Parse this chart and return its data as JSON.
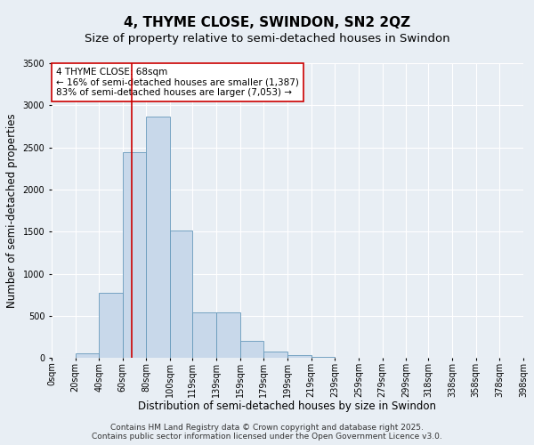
{
  "title": "4, THYME CLOSE, SWINDON, SN2 2QZ",
  "subtitle": "Size of property relative to semi-detached houses in Swindon",
  "xlabel": "Distribution of semi-detached houses by size in Swindon",
  "ylabel": "Number of semi-detached properties",
  "bar_labels": [
    "0sqm",
    "20sqm",
    "40sqm",
    "60sqm",
    "80sqm",
    "100sqm",
    "119sqm",
    "139sqm",
    "159sqm",
    "179sqm",
    "199sqm",
    "219sqm",
    "239sqm",
    "259sqm",
    "279sqm",
    "299sqm",
    "318sqm",
    "338sqm",
    "358sqm",
    "378sqm",
    "398sqm"
  ],
  "bar_values": [
    5,
    60,
    770,
    2440,
    2870,
    1510,
    540,
    540,
    205,
    80,
    40,
    15,
    5,
    5,
    2,
    2,
    0,
    0,
    0,
    0,
    0
  ],
  "bin_edges": [
    0,
    20,
    40,
    60,
    80,
    100,
    119,
    139,
    159,
    179,
    199,
    219,
    239,
    259,
    279,
    299,
    318,
    338,
    358,
    378,
    398
  ],
  "bar_color": "#c8d8ea",
  "bar_edge_color": "#6699bb",
  "property_line_x": 68,
  "property_line_color": "#cc0000",
  "annotation_text": "4 THYME CLOSE: 68sqm\n← 16% of semi-detached houses are smaller (1,387)\n83% of semi-detached houses are larger (7,053) →",
  "annotation_box_color": "#ffffff",
  "annotation_box_edge": "#cc0000",
  "ylim": [
    0,
    3500
  ],
  "yticks": [
    0,
    500,
    1000,
    1500,
    2000,
    2500,
    3000,
    3500
  ],
  "footer_line1": "Contains HM Land Registry data © Crown copyright and database right 2025.",
  "footer_line2": "Contains public sector information licensed under the Open Government Licence v3.0.",
  "background_color": "#e8eef4",
  "plot_bg_color": "#e8eef4",
  "grid_color": "#ffffff",
  "title_fontsize": 11,
  "subtitle_fontsize": 9.5,
  "axis_label_fontsize": 8.5,
  "tick_fontsize": 7,
  "annotation_fontsize": 7.5,
  "footer_fontsize": 6.5
}
